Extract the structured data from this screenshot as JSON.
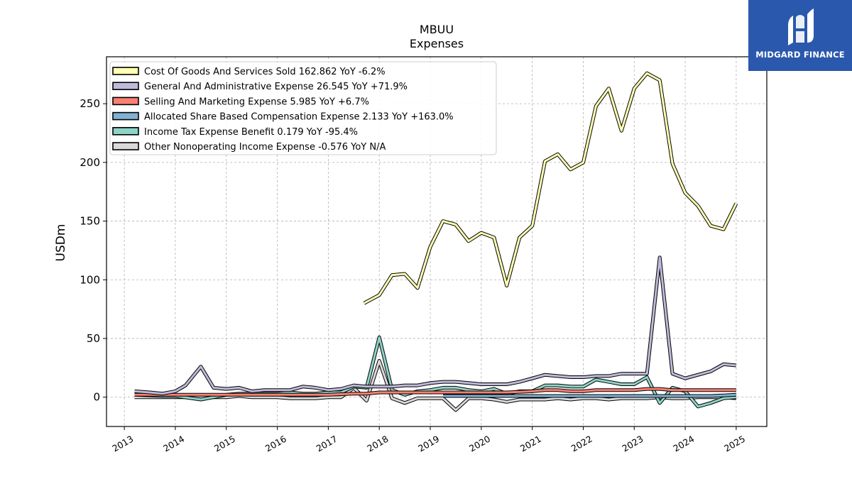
{
  "chart_data": {
    "type": "line",
    "title": "MBUU",
    "subtitle": "Expenses",
    "ylabel": "USDm",
    "xlabel": "",
    "xlim": [
      2012.65,
      2025.6
    ],
    "ylim": [
      -25,
      290
    ],
    "yticks": [
      0,
      50,
      100,
      150,
      200,
      250
    ],
    "xticks": [
      "2013",
      "2014",
      "2015",
      "2016",
      "2017",
      "2018",
      "2019",
      "2020",
      "2021",
      "2022",
      "2023",
      "2024",
      "2025"
    ],
    "grid": true,
    "legend_position": "top-left",
    "series": [
      {
        "name": "Cost Of Goods And Services Sold",
        "legend": "Cost Of Goods And Services Sold  162.862 YoY -6.2%",
        "color": "#ffffb3",
        "points": [
          [
            2017.7,
            80
          ],
          [
            2018.0,
            87
          ],
          [
            2018.25,
            104
          ],
          [
            2018.5,
            105
          ],
          [
            2018.75,
            93
          ],
          [
            2019.0,
            128
          ],
          [
            2019.25,
            150
          ],
          [
            2019.5,
            147
          ],
          [
            2019.75,
            133
          ],
          [
            2020.0,
            140
          ],
          [
            2020.25,
            136
          ],
          [
            2020.5,
            95
          ],
          [
            2020.75,
            136
          ],
          [
            2021.0,
            146
          ],
          [
            2021.25,
            201
          ],
          [
            2021.5,
            207
          ],
          [
            2021.75,
            194
          ],
          [
            2022.0,
            200
          ],
          [
            2022.25,
            248
          ],
          [
            2022.5,
            263
          ],
          [
            2022.75,
            227
          ],
          [
            2023.0,
            263
          ],
          [
            2023.25,
            276
          ],
          [
            2023.5,
            270
          ],
          [
            2023.75,
            199
          ],
          [
            2024.0,
            174
          ],
          [
            2024.25,
            163
          ],
          [
            2024.5,
            146
          ],
          [
            2024.75,
            143
          ],
          [
            2025.0,
            165
          ]
        ]
      },
      {
        "name": "General And Administrative Expense",
        "legend": "General And Administrative Expense  26.545 YoY +71.9%",
        "color": "#bebada",
        "points": [
          [
            2013.2,
            5
          ],
          [
            2013.5,
            4
          ],
          [
            2013.75,
            3
          ],
          [
            2014.0,
            5
          ],
          [
            2014.2,
            10
          ],
          [
            2014.5,
            26
          ],
          [
            2014.75,
            8
          ],
          [
            2015.0,
            7
          ],
          [
            2015.25,
            8
          ],
          [
            2015.5,
            5
          ],
          [
            2015.75,
            6
          ],
          [
            2016.0,
            6
          ],
          [
            2016.25,
            6
          ],
          [
            2016.5,
            9
          ],
          [
            2016.75,
            8
          ],
          [
            2017.0,
            6
          ],
          [
            2017.25,
            7
          ],
          [
            2017.5,
            10
          ],
          [
            2017.75,
            9
          ],
          [
            2018.0,
            9
          ],
          [
            2018.25,
            9
          ],
          [
            2018.5,
            10
          ],
          [
            2018.75,
            10
          ],
          [
            2019.0,
            12
          ],
          [
            2019.25,
            13
          ],
          [
            2019.5,
            13
          ],
          [
            2019.75,
            12
          ],
          [
            2020.0,
            11
          ],
          [
            2020.25,
            11
          ],
          [
            2020.5,
            11
          ],
          [
            2020.75,
            13
          ],
          [
            2021.0,
            16
          ],
          [
            2021.25,
            19
          ],
          [
            2021.5,
            18
          ],
          [
            2021.75,
            17
          ],
          [
            2022.0,
            17
          ],
          [
            2022.25,
            18
          ],
          [
            2022.5,
            18
          ],
          [
            2022.75,
            20
          ],
          [
            2023.0,
            20
          ],
          [
            2023.25,
            20
          ],
          [
            2023.5,
            119
          ],
          [
            2023.75,
            20
          ],
          [
            2024.0,
            16
          ],
          [
            2024.25,
            19
          ],
          [
            2024.5,
            22
          ],
          [
            2024.75,
            28
          ],
          [
            2025.0,
            27
          ]
        ]
      },
      {
        "name": "Selling And Marketing Expense",
        "legend": "Selling And Marketing Expense  5.985 YoY +6.7%",
        "color": "#fb8072",
        "points": [
          [
            2013.2,
            2
          ],
          [
            2013.5,
            2
          ],
          [
            2013.75,
            2
          ],
          [
            2014.0,
            2
          ],
          [
            2014.5,
            2
          ],
          [
            2015.0,
            2
          ],
          [
            2015.5,
            2
          ],
          [
            2016.0,
            2
          ],
          [
            2016.5,
            2
          ],
          [
            2017.0,
            2
          ],
          [
            2017.5,
            3
          ],
          [
            2017.75,
            3
          ],
          [
            2018.0,
            4
          ],
          [
            2018.25,
            4
          ],
          [
            2018.5,
            4
          ],
          [
            2018.75,
            4
          ],
          [
            2019.0,
            4
          ],
          [
            2019.5,
            4
          ],
          [
            2020.0,
            4
          ],
          [
            2020.5,
            4
          ],
          [
            2021.0,
            5
          ],
          [
            2021.25,
            6
          ],
          [
            2021.5,
            6
          ],
          [
            2021.75,
            5
          ],
          [
            2022.0,
            5
          ],
          [
            2022.25,
            6
          ],
          [
            2022.5,
            6
          ],
          [
            2022.75,
            6
          ],
          [
            2023.0,
            6
          ],
          [
            2023.25,
            7
          ],
          [
            2023.5,
            7
          ],
          [
            2023.75,
            6
          ],
          [
            2024.0,
            6
          ],
          [
            2024.25,
            6
          ],
          [
            2024.5,
            6
          ],
          [
            2024.75,
            6
          ],
          [
            2025.0,
            6
          ]
        ]
      },
      {
        "name": "Allocated Share Based Compensation Expense",
        "legend": "Allocated Share Based Compensation Expense  2.133 YoY +163.0%",
        "color": "#80b1d3",
        "points": [
          [
            2019.25,
            1
          ],
          [
            2019.5,
            1
          ],
          [
            2019.75,
            1
          ],
          [
            2020.0,
            1
          ],
          [
            2020.25,
            1
          ],
          [
            2020.5,
            1
          ],
          [
            2020.75,
            1
          ],
          [
            2021.0,
            1
          ],
          [
            2021.5,
            1
          ],
          [
            2022.0,
            1
          ],
          [
            2022.5,
            1
          ],
          [
            2023.0,
            1
          ],
          [
            2023.5,
            1
          ],
          [
            2024.0,
            1
          ],
          [
            2024.5,
            1
          ],
          [
            2024.75,
            1.5
          ],
          [
            2025.0,
            2
          ]
        ]
      },
      {
        "name": "Income Tax Expense Benefit",
        "legend": "Income Tax Expense Benefit  0.179 YoY -95.4%",
        "color": "#8dd3c7",
        "points": [
          [
            2013.2,
            2
          ],
          [
            2013.75,
            1
          ],
          [
            2014.0,
            1
          ],
          [
            2014.5,
            -2
          ],
          [
            2015.0,
            2
          ],
          [
            2015.25,
            3
          ],
          [
            2015.5,
            3
          ],
          [
            2015.75,
            3
          ],
          [
            2016.0,
            3
          ],
          [
            2016.25,
            4
          ],
          [
            2016.5,
            3
          ],
          [
            2016.75,
            3
          ],
          [
            2017.0,
            4
          ],
          [
            2017.25,
            4
          ],
          [
            2017.5,
            9
          ],
          [
            2017.75,
            8
          ],
          [
            2018.0,
            51
          ],
          [
            2018.25,
            6
          ],
          [
            2018.5,
            2
          ],
          [
            2018.75,
            5
          ],
          [
            2019.0,
            6
          ],
          [
            2019.25,
            8
          ],
          [
            2019.5,
            8
          ],
          [
            2019.75,
            6
          ],
          [
            2020.0,
            5
          ],
          [
            2020.25,
            7
          ],
          [
            2020.5,
            3
          ],
          [
            2020.75,
            5
          ],
          [
            2021.0,
            5
          ],
          [
            2021.25,
            10
          ],
          [
            2021.5,
            10
          ],
          [
            2021.75,
            9
          ],
          [
            2022.0,
            9
          ],
          [
            2022.25,
            15
          ],
          [
            2022.5,
            13
          ],
          [
            2022.75,
            11
          ],
          [
            2023.0,
            11
          ],
          [
            2023.25,
            17
          ],
          [
            2023.5,
            -5
          ],
          [
            2023.75,
            8
          ],
          [
            2024.0,
            5
          ],
          [
            2024.25,
            -8
          ],
          [
            2024.5,
            -5
          ],
          [
            2024.75,
            -1
          ],
          [
            2025.0,
            0
          ]
        ]
      },
      {
        "name": "Other Nonoperating Income Expense",
        "legend": "Other Nonoperating Income Expense  -0.576 YoY N/A",
        "color": "#d9d9d9",
        "points": [
          [
            2013.2,
            0
          ],
          [
            2014.0,
            0
          ],
          [
            2014.5,
            0
          ],
          [
            2015.0,
            0
          ],
          [
            2015.25,
            1
          ],
          [
            2015.5,
            0
          ],
          [
            2016.0,
            0
          ],
          [
            2016.25,
            -1
          ],
          [
            2016.75,
            -1
          ],
          [
            2017.0,
            0
          ],
          [
            2017.25,
            0
          ],
          [
            2017.5,
            8
          ],
          [
            2017.75,
            -3
          ],
          [
            2018.0,
            31
          ],
          [
            2018.25,
            -1
          ],
          [
            2018.5,
            -5
          ],
          [
            2018.75,
            -1
          ],
          [
            2019.0,
            -1
          ],
          [
            2019.25,
            -1
          ],
          [
            2019.5,
            -11
          ],
          [
            2019.75,
            -1
          ],
          [
            2020.0,
            -1
          ],
          [
            2020.25,
            -2
          ],
          [
            2020.5,
            -4
          ],
          [
            2020.75,
            -2
          ],
          [
            2021.0,
            -2
          ],
          [
            2021.25,
            -2
          ],
          [
            2021.5,
            -1
          ],
          [
            2021.75,
            -2
          ],
          [
            2022.0,
            -1
          ],
          [
            2022.25,
            -1
          ],
          [
            2022.5,
            -2
          ],
          [
            2022.75,
            -1
          ],
          [
            2023.0,
            -1
          ],
          [
            2023.25,
            -1
          ],
          [
            2023.5,
            0
          ],
          [
            2023.75,
            -1
          ],
          [
            2024.0,
            -1
          ],
          [
            2024.25,
            0
          ],
          [
            2024.5,
            0
          ],
          [
            2024.75,
            0
          ],
          [
            2025.0,
            -1
          ]
        ]
      }
    ]
  },
  "logo": {
    "text": "MIDGARD FINANCE"
  }
}
